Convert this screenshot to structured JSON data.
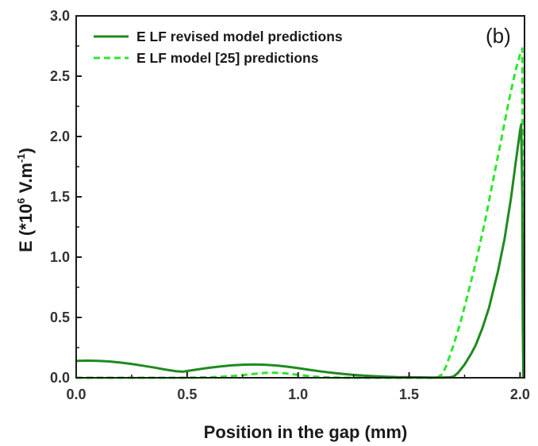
{
  "chart_data": {
    "type": "line",
    "xlabel": "Position in the gap (mm)",
    "ylabel": {
      "prefix": "E (*10",
      "sup1": "6",
      "mid": " V.m",
      "sup2": "-1",
      "suffix": ")"
    },
    "panel_label": "(b)",
    "xlim": [
      0.0,
      2.02
    ],
    "ylim": [
      0.0,
      3.0
    ],
    "xticks": [
      0.0,
      0.5,
      1.0,
      1.5,
      2.0
    ],
    "yticks": [
      0.0,
      0.5,
      1.0,
      1.5,
      2.0,
      2.5,
      3.0
    ],
    "xtick_labels": [
      "0.0",
      "0.5",
      "1.0",
      "1.5",
      "2.0"
    ],
    "ytick_labels": [
      "0.0",
      "0.5",
      "1.0",
      "1.5",
      "2.0",
      "2.5",
      "3.0"
    ],
    "grid": false,
    "legend_position": "top-left",
    "series": [
      {
        "name": "E LF revised model predictions",
        "color": "#1f8a1f",
        "style": "solid",
        "x": [
          0.0,
          0.05,
          0.1,
          0.15,
          0.2,
          0.25,
          0.3,
          0.35,
          0.4,
          0.45,
          0.48,
          0.5,
          0.55,
          0.6,
          0.65,
          0.7,
          0.75,
          0.8,
          0.85,
          0.9,
          0.95,
          1.0,
          1.05,
          1.1,
          1.15,
          1.2,
          1.25,
          1.3,
          1.35,
          1.4,
          1.45,
          1.5,
          1.55,
          1.6,
          1.65,
          1.68,
          1.7,
          1.72,
          1.75,
          1.78,
          1.8,
          1.83,
          1.86,
          1.9,
          1.93,
          1.96,
          1.98,
          2.0,
          2.005,
          2.01,
          2.012,
          2.015
        ],
        "y": [
          0.14,
          0.142,
          0.14,
          0.135,
          0.126,
          0.114,
          0.1,
          0.085,
          0.068,
          0.054,
          0.05,
          0.056,
          0.07,
          0.083,
          0.094,
          0.103,
          0.108,
          0.11,
          0.108,
          0.102,
          0.092,
          0.08,
          0.066,
          0.053,
          0.042,
          0.032,
          0.024,
          0.017,
          0.012,
          0.008,
          0.005,
          0.004,
          0.003,
          0.002,
          0.002,
          0.003,
          0.01,
          0.04,
          0.11,
          0.2,
          0.27,
          0.41,
          0.58,
          0.88,
          1.15,
          1.5,
          1.78,
          2.05,
          2.1,
          1.5,
          0.5,
          0.0
        ]
      },
      {
        "name": "E LF model [25] predictions",
        "color": "#2ee62e",
        "style": "dashed",
        "x": [
          0.0,
          0.1,
          0.2,
          0.3,
          0.4,
          0.48,
          0.55,
          0.6,
          0.65,
          0.7,
          0.75,
          0.8,
          0.85,
          0.88,
          0.92,
          0.95,
          1.0,
          1.05,
          1.1,
          1.15,
          1.2,
          1.3,
          1.4,
          1.5,
          1.55,
          1.6,
          1.63,
          1.65,
          1.67,
          1.7,
          1.73,
          1.76,
          1.8,
          1.84,
          1.88,
          1.92,
          1.95,
          1.98,
          2.0,
          2.01,
          2.012,
          2.015
        ],
        "y": [
          0.0,
          0.0,
          0.0,
          0.0,
          0.0,
          0.0,
          0.002,
          0.004,
          0.008,
          0.014,
          0.022,
          0.032,
          0.04,
          0.042,
          0.04,
          0.035,
          0.024,
          0.013,
          0.006,
          0.002,
          0.0,
          0.0,
          0.0,
          0.0,
          0.0,
          0.0,
          0.005,
          0.03,
          0.11,
          0.27,
          0.45,
          0.66,
          0.95,
          1.28,
          1.65,
          2.02,
          2.3,
          2.55,
          2.68,
          2.73,
          1.5,
          0.0
        ]
      }
    ]
  }
}
